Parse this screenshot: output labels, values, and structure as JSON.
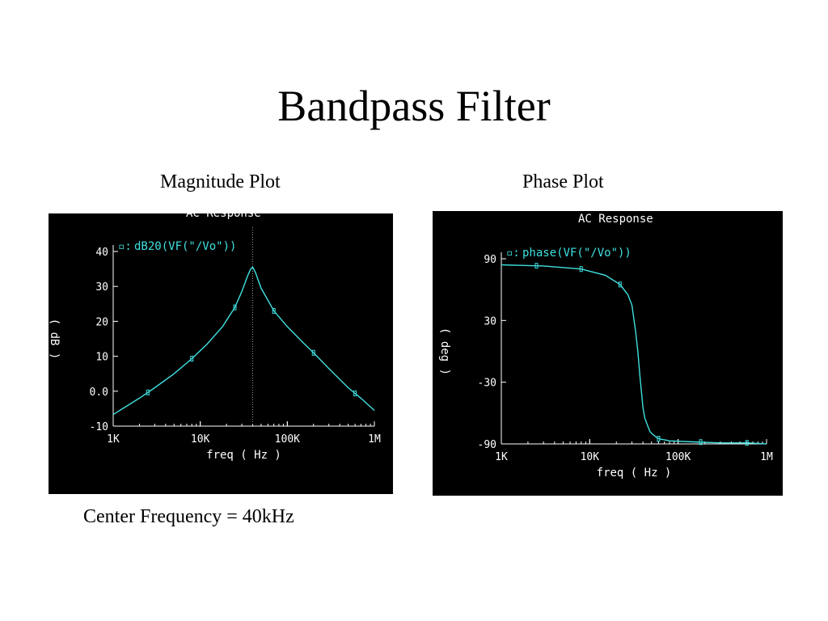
{
  "slide": {
    "title": "Bandpass Filter",
    "magnitude_label": "Magnitude Plot",
    "phase_label": "Phase Plot",
    "footer": "Center Frequency = 40kHz"
  },
  "colors": {
    "trace": "#40e0e0",
    "axis": "#ffffff",
    "background": "#000000",
    "center_line": "#9a9a9a"
  },
  "chart_data": [
    {
      "type": "line",
      "header": "AC Response",
      "legend_marker": "▫:",
      "legend_text": "dB20(VF(\"/Vo\"))",
      "xlabel": "freq ( Hz )",
      "ylabel": "( dB )",
      "xscale": "log",
      "xlim": [
        1000,
        1000000
      ],
      "ylim": [
        -10,
        40
      ],
      "xticks": [
        {
          "v": 1000,
          "label": "1K"
        },
        {
          "v": 10000,
          "label": "10K"
        },
        {
          "v": 100000,
          "label": "100K"
        },
        {
          "v": 1000000,
          "label": "1M"
        }
      ],
      "yticks": [
        {
          "v": 40,
          "label": "40"
        },
        {
          "v": 30,
          "label": "30"
        },
        {
          "v": 20,
          "label": "20"
        },
        {
          "v": 10,
          "label": "10"
        },
        {
          "v": 0,
          "label": "0.0"
        },
        {
          "v": -10,
          "label": "-10"
        }
      ],
      "center_line_x": 40000,
      "series": [
        {
          "x": [
            1000,
            2000,
            3000,
            5000,
            8000,
            12000,
            18000,
            25000,
            30000,
            35000,
            38000,
            40000,
            43000,
            50000,
            70000,
            100000,
            150000,
            200000,
            300000,
            500000,
            700000,
            1000000
          ],
          "y": [
            -6.7,
            -2.0,
            1.0,
            5.0,
            9.3,
            13.5,
            18.5,
            24.0,
            28.5,
            33.0,
            35.0,
            35.5,
            34.0,
            29.5,
            23.0,
            18.5,
            14.0,
            11.0,
            6.5,
            1.0,
            -2.0,
            -5.5
          ]
        }
      ],
      "markers_x": [
        2500,
        8000,
        25000,
        70000,
        200000,
        600000
      ]
    },
    {
      "type": "line",
      "header": "AC Response",
      "legend_marker": "▫:",
      "legend_text": "phase(VF(\"/Vo\"))",
      "xlabel": "freq ( Hz )",
      "ylabel": "( deg )",
      "xscale": "log",
      "xlim": [
        1000,
        1000000
      ],
      "ylim": [
        -90,
        90
      ],
      "xticks": [
        {
          "v": 1000,
          "label": "1K"
        },
        {
          "v": 10000,
          "label": "10K"
        },
        {
          "v": 100000,
          "label": "100K"
        },
        {
          "v": 1000000,
          "label": "1M"
        }
      ],
      "yticks": [
        {
          "v": 90,
          "label": "90"
        },
        {
          "v": 30,
          "label": "30"
        },
        {
          "v": -30,
          "label": "-30"
        },
        {
          "v": -90,
          "label": "-90"
        }
      ],
      "series": [
        {
          "x": [
            1000,
            3000,
            8000,
            15000,
            22000,
            27000,
            30000,
            33000,
            35000,
            37000,
            39000,
            40000,
            42000,
            45000,
            48000,
            52000,
            60000,
            80000,
            150000,
            300000,
            600000,
            1000000
          ],
          "y": [
            84,
            83,
            80,
            74,
            65,
            55,
            45,
            20,
            0,
            -25,
            -45,
            -55,
            -65,
            -72,
            -78,
            -81,
            -85,
            -87,
            -88,
            -89,
            -89,
            -90
          ]
        }
      ],
      "markers_x": [
        2500,
        8000,
        22000,
        60000,
        180000,
        600000
      ]
    }
  ]
}
